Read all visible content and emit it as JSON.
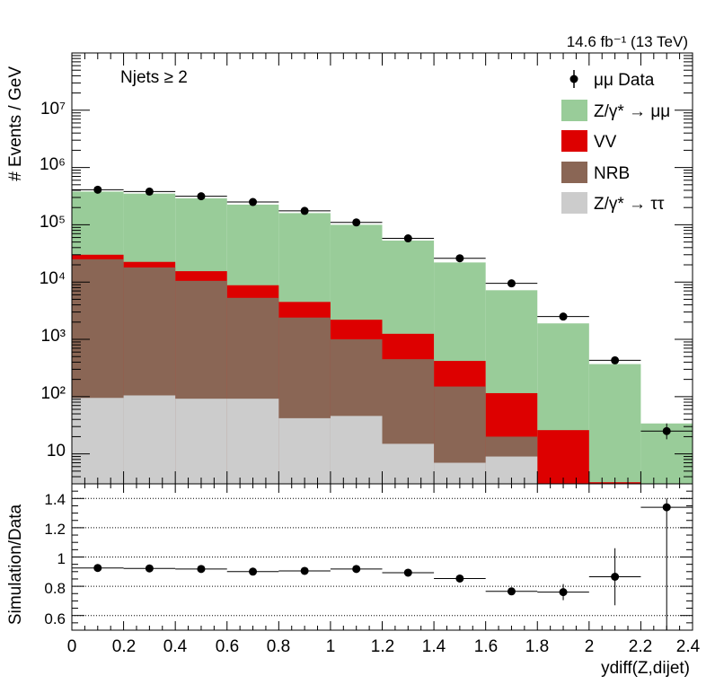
{
  "chart_data": {
    "type": "stacked-histogram-with-ratio",
    "lumi_label": "14.6 fb⁻¹ (13 TeV)",
    "selection_label": "Njets ≥ 2",
    "xlabel": "ydiff(Z,dijet)",
    "ylabel": "# Events / GeV",
    "ratio_ylabel": "Simulation/Data",
    "x_range": [
      0,
      2.4
    ],
    "y_range_log": [
      3,
      100000000.0
    ],
    "ratio_range": [
      0.5,
      1.5
    ],
    "x_ticks": [
      "0",
      "0.2",
      "0.4",
      "0.6",
      "0.8",
      "1",
      "1.2",
      "1.4",
      "1.6",
      "1.8",
      "2",
      "2.2",
      "2.4"
    ],
    "ratio_ticks": [
      "0.6",
      "0.8",
      "1",
      "1.2",
      "1.4"
    ],
    "y_tick_labels": [
      "10",
      "10²",
      "10³",
      "10⁴",
      "10⁵",
      "10⁶",
      "10⁷"
    ],
    "bin_edges": [
      0,
      0.2,
      0.4,
      0.6,
      0.8,
      1.0,
      1.2,
      1.4,
      1.6,
      1.8,
      2.0,
      2.2,
      2.4
    ],
    "legend": [
      {
        "key": "data",
        "label": "μμ Data"
      },
      {
        "key": "dy",
        "label": "Z/γ* → μμ"
      },
      {
        "key": "vv",
        "label": "VV"
      },
      {
        "key": "nrb",
        "label": "NRB"
      },
      {
        "key": "tt",
        "label": "Z/γ* → ττ"
      }
    ],
    "colors": {
      "dy": "#99cc99",
      "vv": "#dd0000",
      "nrb": "#8a6655",
      "tt": "#cccccc",
      "data": "#000000"
    },
    "stack_totals": {
      "tt": [
        95,
        105,
        92,
        92,
        42,
        46,
        15,
        7,
        9,
        3,
        3,
        3
      ],
      "nrb": [
        25000,
        18000,
        10500,
        5300,
        2400,
        1000,
        450,
        150,
        20,
        3,
        3,
        3
      ],
      "vv": [
        30000,
        22500,
        15500,
        8800,
        4500,
        2200,
        1250,
        420,
        115,
        26,
        3.2,
        3
      ],
      "dy": [
        380000,
        350000,
        290000,
        225000,
        160000,
        100000,
        53000,
        22000,
        7200,
        1900,
        370,
        34
      ]
    },
    "data_points": [
      {
        "x": 0.1,
        "y": 410000
      },
      {
        "x": 0.3,
        "y": 380000
      },
      {
        "x": 0.5,
        "y": 315000
      },
      {
        "x": 0.7,
        "y": 250000
      },
      {
        "x": 0.9,
        "y": 175000
      },
      {
        "x": 1.1,
        "y": 110000
      },
      {
        "x": 1.3,
        "y": 58000
      },
      {
        "x": 1.5,
        "y": 26000
      },
      {
        "x": 1.7,
        "y": 9500
      },
      {
        "x": 1.9,
        "y": 2500
      },
      {
        "x": 2.1,
        "y": 430
      },
      {
        "x": 2.3,
        "y": 25,
        "err_lo": 7,
        "err_hi": 9
      }
    ],
    "ratio_points": [
      {
        "x": 0.1,
        "y": 0.925,
        "err": 0
      },
      {
        "x": 0.3,
        "y": 0.922,
        "err": 0
      },
      {
        "x": 0.5,
        "y": 0.918,
        "err": 0
      },
      {
        "x": 0.7,
        "y": 0.9,
        "err": 0
      },
      {
        "x": 0.9,
        "y": 0.905,
        "err": 0
      },
      {
        "x": 1.1,
        "y": 0.918,
        "err": 0
      },
      {
        "x": 1.3,
        "y": 0.893,
        "err": 0.01
      },
      {
        "x": 1.5,
        "y": 0.853,
        "err": 0.015
      },
      {
        "x": 1.7,
        "y": 0.765,
        "err": 0.025
      },
      {
        "x": 1.9,
        "y": 0.76,
        "err": 0.055
      },
      {
        "x": 2.1,
        "y": 0.865,
        "err": 0.195
      },
      {
        "x": 2.3,
        "y": 1.34,
        "err_lo": 0.84,
        "err_hi": 0.06
      }
    ]
  }
}
